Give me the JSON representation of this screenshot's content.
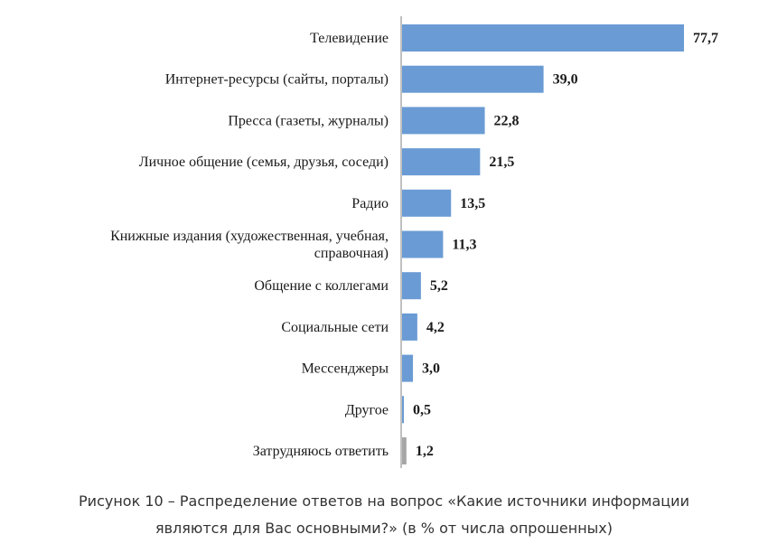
{
  "chart_data": {
    "type": "bar",
    "orientation": "horizontal",
    "categories": [
      [
        "Телевидение"
      ],
      [
        "Интернет-ресурсы (сайты, порталы)"
      ],
      [
        "Пресса (газеты, журналы)"
      ],
      [
        "Личное общение (семья, друзья, соседи)"
      ],
      [
        "Радио"
      ],
      [
        "Книжные издания (художественная, учебная,",
        "справочная)"
      ],
      [
        "Общение с коллегами"
      ],
      [
        "Социальные сети"
      ],
      [
        "Мессенджеры"
      ],
      [
        "Другое"
      ],
      [
        "Затрудняюсь ответить"
      ]
    ],
    "values": [
      77.7,
      39.0,
      22.8,
      21.5,
      13.5,
      11.3,
      5.2,
      4.2,
      3.0,
      0.5,
      1.2
    ],
    "value_labels": [
      "77,7",
      "39,0",
      "22,8",
      "21,5",
      "13,5",
      "11,3",
      "5,2",
      "4,2",
      "3,0",
      "0,5",
      "1,2"
    ],
    "bar_colors": [
      "#6a9bd4",
      "#6a9bd4",
      "#6a9bd4",
      "#6a9bd4",
      "#6a9bd4",
      "#6a9bd4",
      "#6a9bd4",
      "#6a9bd4",
      "#6a9bd4",
      "#6a9bd4",
      "#a6a6a6"
    ],
    "xlim": [
      0,
      80
    ],
    "grid": false,
    "legend": "none"
  },
  "caption": {
    "line1": "Рисунок 10 – Распределение ответов на вопрос «Какие источники информации",
    "line2": "являются для Вас основными?» (в % от числа опрошенных)"
  }
}
